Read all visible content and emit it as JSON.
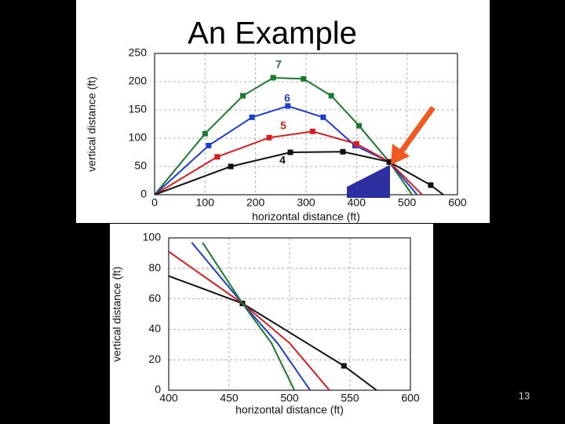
{
  "title": "An Example",
  "page_number": "13",
  "chart_data": [
    {
      "type": "line",
      "xlabel": "horizontal distance (ft)",
      "ylabel": "vertical distance (ft)",
      "xlim": [
        0,
        600
      ],
      "ylim": [
        0,
        250
      ],
      "xticks": [
        0,
        100,
        200,
        300,
        400,
        500,
        600
      ],
      "yticks": [
        0,
        50,
        100,
        150,
        200,
        250
      ],
      "grid": true,
      "series": [
        {
          "name": "7",
          "color": "#1a7a2e",
          "x": [
            0,
            100,
            175,
            235,
            295,
            350,
            405,
            465,
            510
          ],
          "values": [
            0,
            108,
            175,
            207,
            205,
            175,
            122,
            58,
            0
          ]
        },
        {
          "name": "6",
          "color": "#1f3fcf",
          "x": [
            0,
            107,
            193,
            264,
            334,
            397,
            465,
            520
          ],
          "values": [
            0,
            87,
            137,
            157,
            137,
            87,
            58,
            0
          ]
        },
        {
          "name": "5",
          "color": "#d81e1e",
          "x": [
            0,
            124,
            227,
            313,
            400,
            465,
            530
          ],
          "values": [
            0,
            67,
            101,
            112,
            90,
            58,
            0
          ]
        },
        {
          "name": "4",
          "color": "#111111",
          "x": [
            0,
            151,
            269,
            373,
            465,
            547,
            572
          ],
          "values": [
            0,
            50,
            75,
            76,
            58,
            17,
            0
          ]
        }
      ]
    },
    {
      "type": "line",
      "xlabel": "horizontal distance (ft)",
      "ylabel": "vertical distance (ft)",
      "xlim": [
        400,
        600
      ],
      "ylim": [
        0,
        100
      ],
      "xticks": [
        400,
        450,
        500,
        550,
        600
      ],
      "yticks": [
        0,
        20,
        40,
        60,
        80,
        100
      ],
      "grid": true,
      "series": [
        {
          "color": "#111111",
          "x": [
            400,
            461,
            545,
            572
          ],
          "values": [
            75,
            57,
            16,
            0
          ]
        },
        {
          "color": "#d81e1e",
          "x": [
            400,
            461,
            500,
            533
          ],
          "values": [
            91,
            57,
            31,
            0
          ]
        },
        {
          "color": "#1f3fcf",
          "x": [
            419,
            461,
            490,
            517
          ],
          "values": [
            97,
            57,
            31,
            0
          ]
        },
        {
          "color": "#1a7a2e",
          "x": [
            428,
            461,
            485,
            504
          ],
          "values": [
            97,
            57,
            31,
            0
          ]
        }
      ]
    }
  ]
}
